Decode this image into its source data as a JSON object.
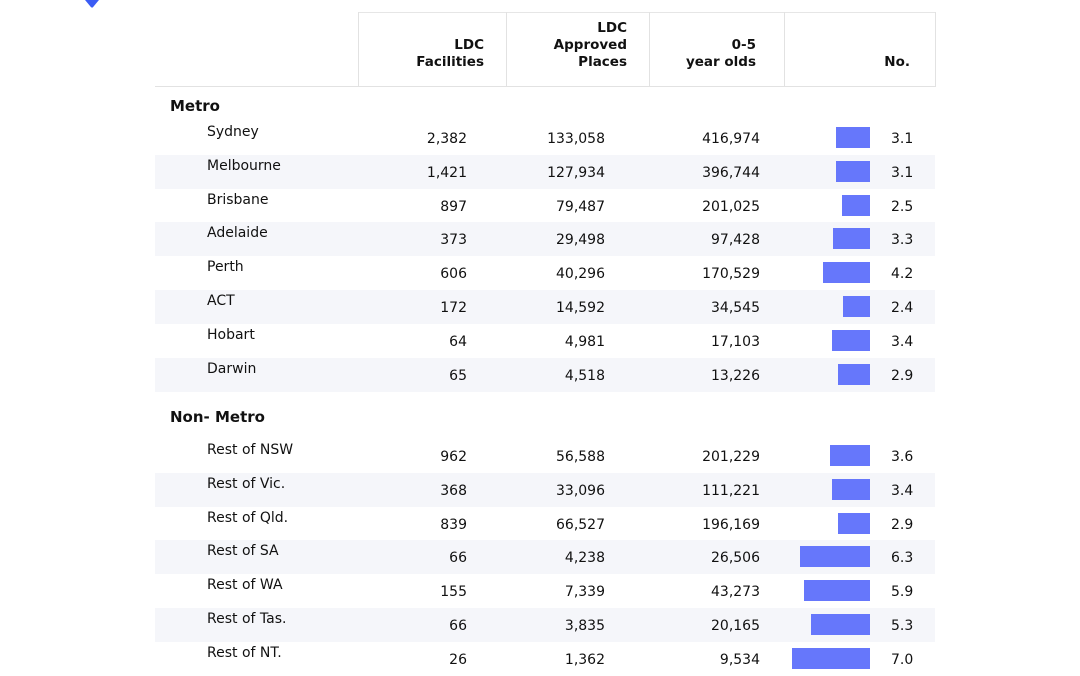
{
  "colors": {
    "bar": "#6677fb",
    "shade": "#f5f6fa",
    "logo": "#3b5cf4"
  },
  "header": {
    "columns": [
      "LDC\nFacilities",
      "LDC\nApproved\nPlaces",
      "0-5\nyear olds",
      "No."
    ]
  },
  "chart_data": {
    "type": "table",
    "title": "",
    "columns": [
      "",
      "LDC Facilities",
      "LDC Approved Places",
      "0-5 year olds",
      "No."
    ],
    "groups": [
      {
        "label": "Metro",
        "rows": [
          {
            "region": "Sydney",
            "facilities": "2,382",
            "places": "133,058",
            "children": "416,974",
            "no": 3.1
          },
          {
            "region": "Melbourne",
            "facilities": "1,421",
            "places": "127,934",
            "children": "396,744",
            "no": 3.1
          },
          {
            "region": "Brisbane",
            "facilities": "897",
            "places": "79,487",
            "children": "201,025",
            "no": 2.5
          },
          {
            "region": "Adelaide",
            "facilities": "373",
            "places": "29,498",
            "children": "97,428",
            "no": 3.3
          },
          {
            "region": "Perth",
            "facilities": "606",
            "places": "40,296",
            "children": "170,529",
            "no": 4.2
          },
          {
            "region": "ACT",
            "facilities": "172",
            "places": "14,592",
            "children": "34,545",
            "no": 2.4
          },
          {
            "region": "Hobart",
            "facilities": "64",
            "places": "4,981",
            "children": "17,103",
            "no": 3.4
          },
          {
            "region": "Darwin",
            "facilities": "65",
            "places": "4,518",
            "children": "13,226",
            "no": 2.9
          }
        ]
      },
      {
        "label": "Non- Metro",
        "rows": [
          {
            "region": "Rest of NSW",
            "facilities": "962",
            "places": "56,588",
            "children": "201,229",
            "no": 3.6
          },
          {
            "region": "Rest of Vic.",
            "facilities": "368",
            "places": "33,096",
            "children": "111,221",
            "no": 3.4
          },
          {
            "region": "Rest of Qld.",
            "facilities": "839",
            "places": "66,527",
            "children": "196,169",
            "no": 2.9
          },
          {
            "region": "Rest of SA",
            "facilities": "66",
            "places": "4,238",
            "children": "26,506",
            "no": 6.3
          },
          {
            "region": "Rest of WA",
            "facilities": "155",
            "places": "7,339",
            "children": "43,273",
            "no": 5.9
          },
          {
            "region": "Rest of Tas.",
            "facilities": "66",
            "places": "3,835",
            "children": "20,165",
            "no": 5.3
          },
          {
            "region": "Rest of NT.",
            "facilities": "26",
            "places": "1,362",
            "children": "9,534",
            "no": 7.0
          }
        ]
      }
    ],
    "bar_scale_max": 7.0
  }
}
